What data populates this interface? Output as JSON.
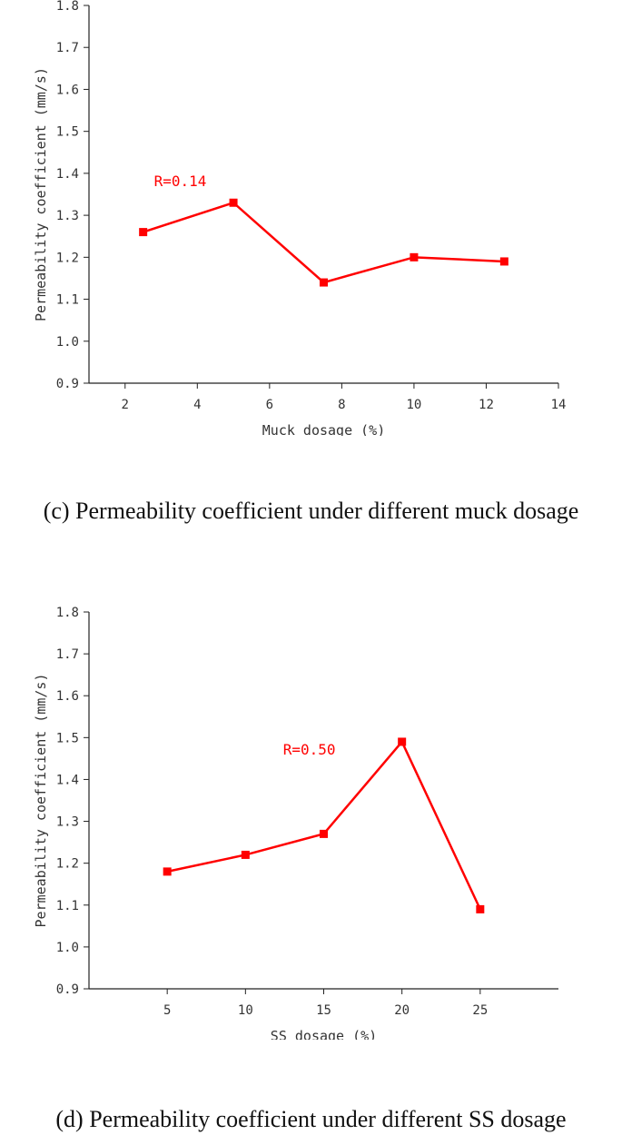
{
  "chart_data": [
    {
      "id": "c",
      "type": "line",
      "xlabel": "Muck dosage (%)",
      "ylabel": "Permeability coefficient (mm/s)",
      "xlim": [
        1,
        14
      ],
      "ylim": [
        0.9,
        1.8
      ],
      "xticks": [
        2,
        4,
        6,
        8,
        10,
        12,
        14
      ],
      "yticks": [
        0.9,
        1.0,
        1.1,
        1.2,
        1.3,
        1.4,
        1.5,
        1.6,
        1.7,
        1.8
      ],
      "ytick_labels": [
        "0.9",
        "1.0",
        "1.1",
        "1.2",
        "1.3",
        "1.4",
        "1.5",
        "1.6",
        "1.7",
        "1.8"
      ],
      "series": [
        {
          "x": [
            2.5,
            5,
            7.5,
            10,
            12.5
          ],
          "values": [
            1.26,
            1.33,
            1.14,
            1.2,
            1.19
          ],
          "color": "#ff0000",
          "marker": "square"
        }
      ],
      "annotation": {
        "text": "R=0.14",
        "x": 2.8,
        "y": 1.37,
        "color": "#ff0000"
      },
      "grid": false,
      "caption": "(c) Permeability coefficient under different muck dosage"
    },
    {
      "id": "d",
      "type": "line",
      "xlabel": "SS dosage (%)",
      "ylabel": "Permeability coefficient (mm/s)",
      "xlim": [
        0,
        30
      ],
      "ylim": [
        0.9,
        1.8
      ],
      "xticks": [
        5,
        10,
        15,
        20,
        25
      ],
      "yticks": [
        0.9,
        1.0,
        1.1,
        1.2,
        1.3,
        1.4,
        1.5,
        1.6,
        1.7,
        1.8
      ],
      "ytick_labels": [
        "0.9",
        "1.0",
        "1.1",
        "1.2",
        "1.3",
        "1.4",
        "1.5",
        "1.6",
        "1.7",
        "1.8"
      ],
      "series": [
        {
          "x": [
            5,
            10,
            15,
            20,
            25
          ],
          "values": [
            1.18,
            1.22,
            1.27,
            1.49,
            1.09
          ],
          "color": "#ff0000",
          "marker": "square"
        }
      ],
      "annotation": {
        "text": "R=0.50",
        "x": 12.4,
        "y": 1.46,
        "color": "#ff0000"
      },
      "grid": false,
      "caption": "(d) Permeability coefficient under different SS dosage"
    }
  ]
}
